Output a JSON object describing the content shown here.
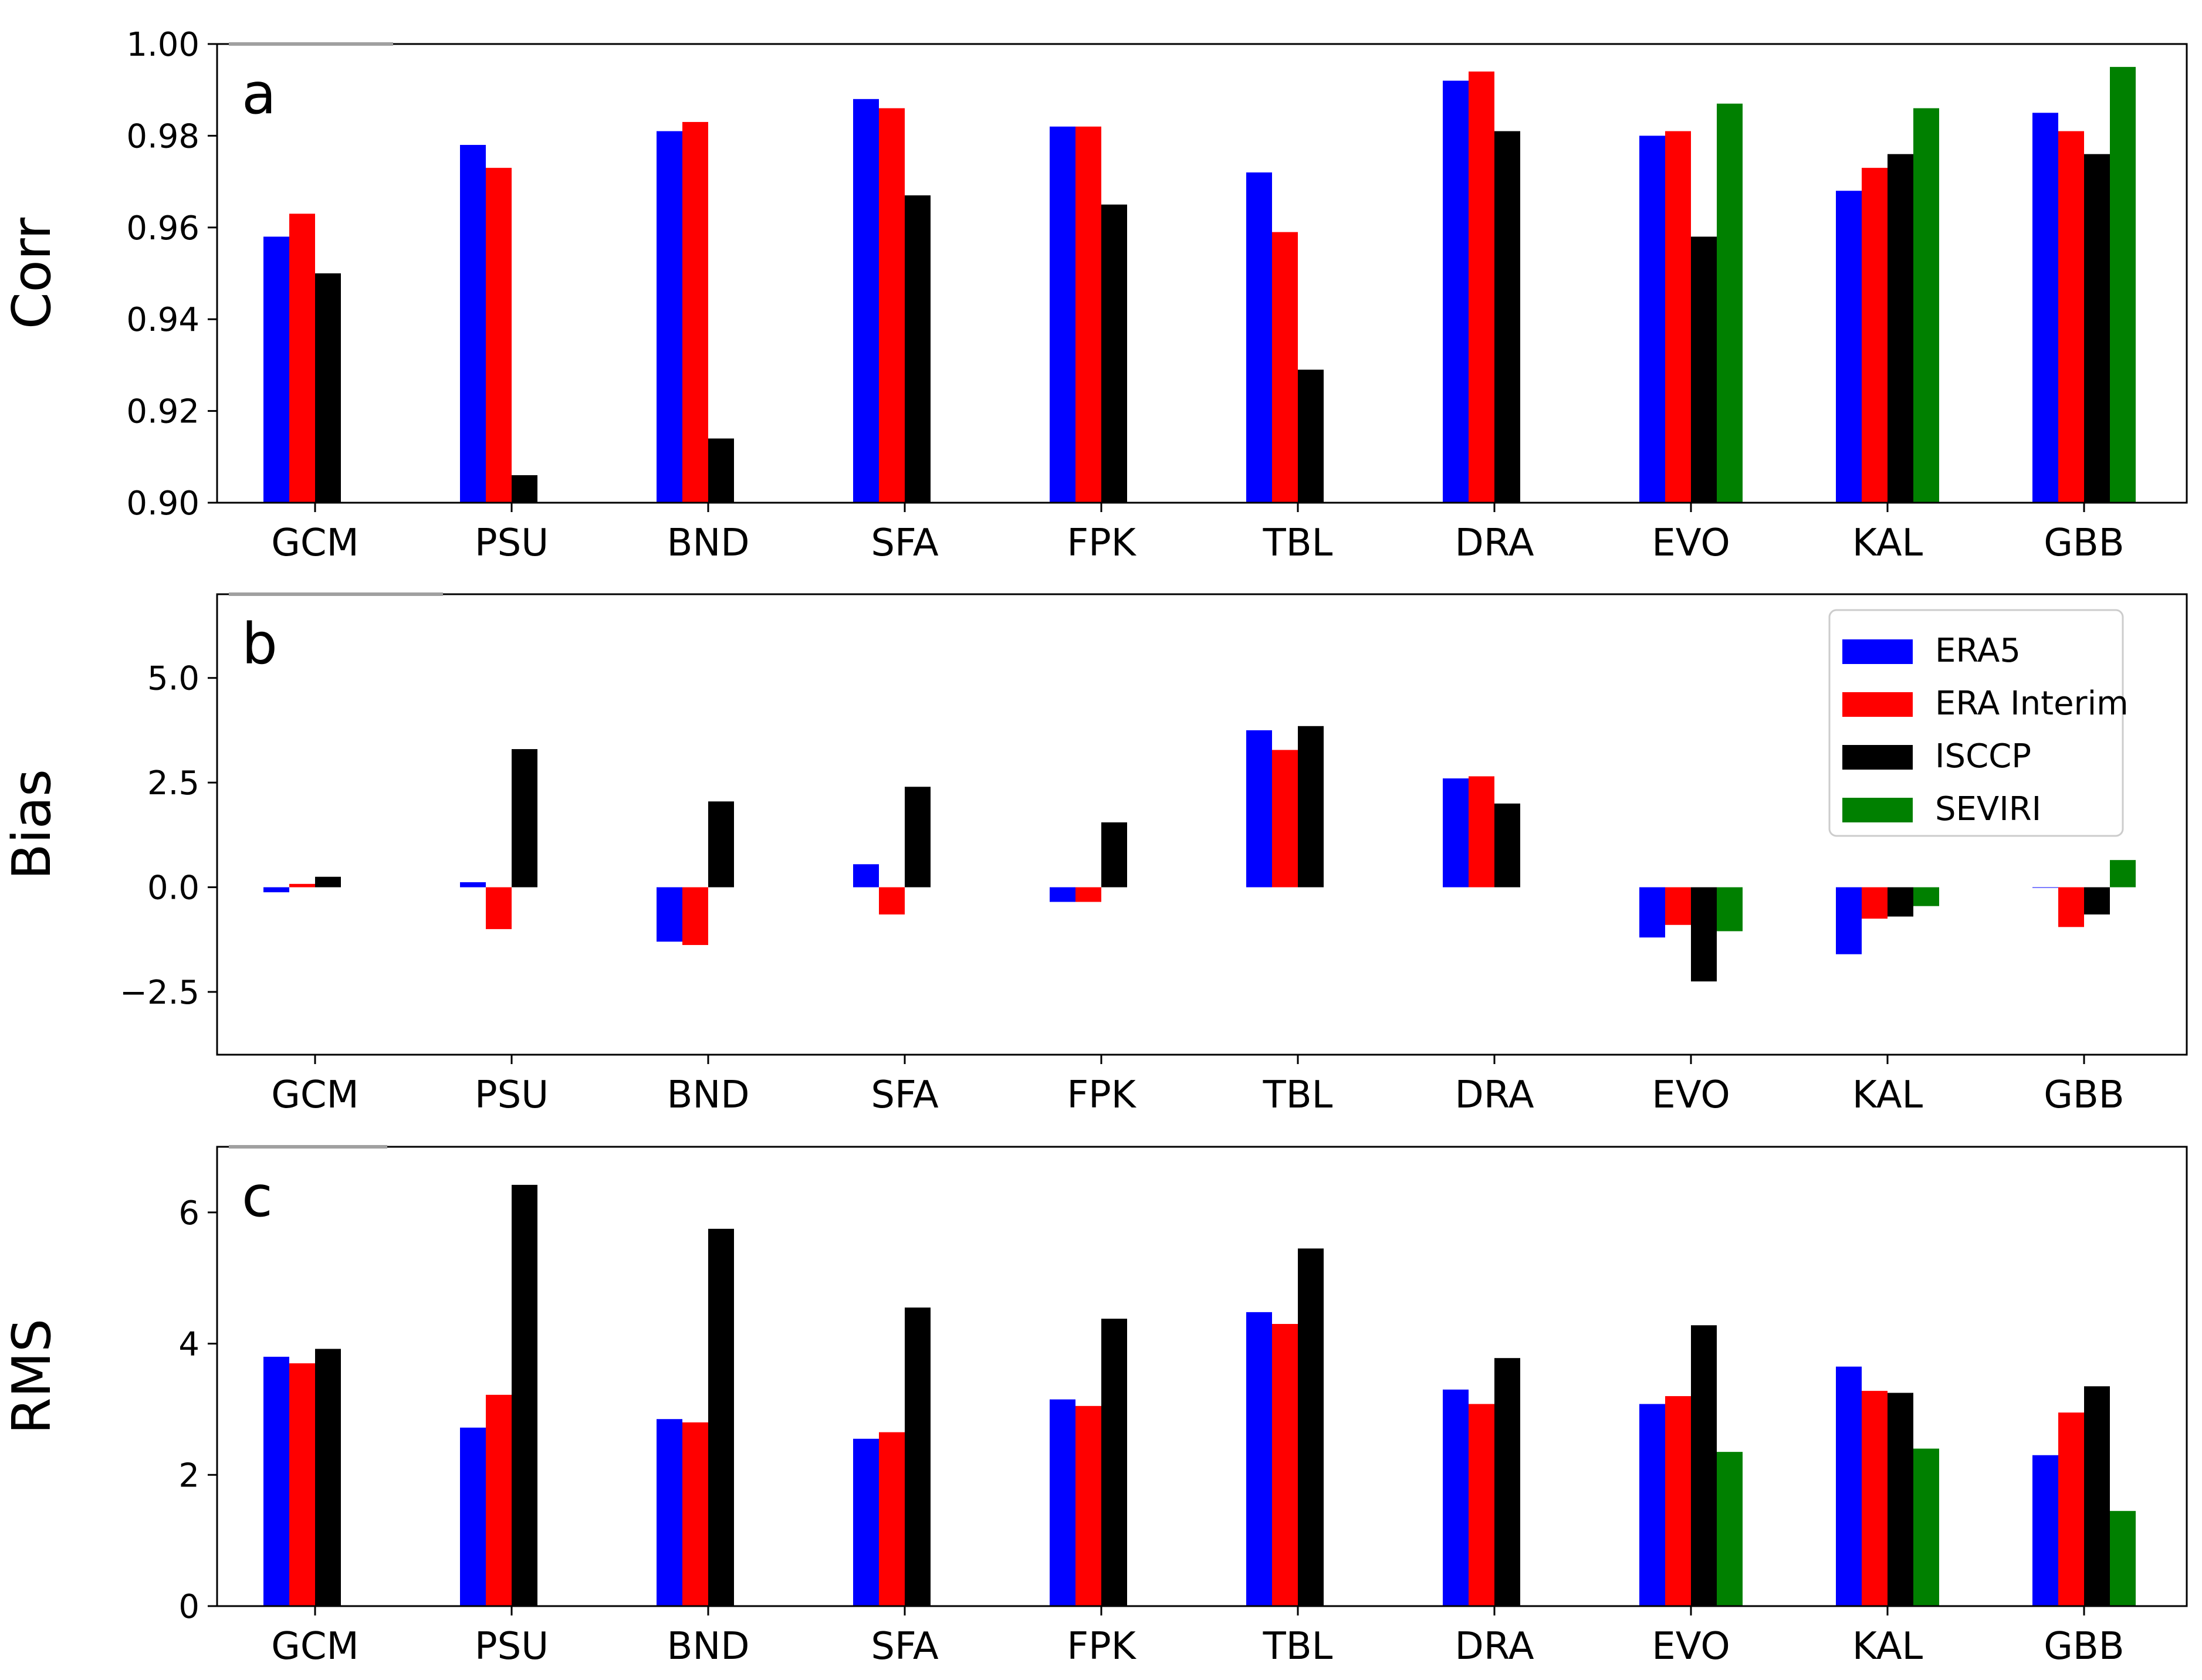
{
  "series_colors": {
    "ERA5": "#0000ff",
    "ERA Interim": "#ff0000",
    "ISCCP": "#000000",
    "SEVIRI": "#008000"
  },
  "legend": {
    "items": [
      "ERA5",
      "ERA Interim",
      "ISCCP",
      "SEVIRI"
    ]
  },
  "chart_data": [
    {
      "type": "bar",
      "panel": "a",
      "ylabel": "Corr",
      "ylim": [
        0.9,
        1.0
      ],
      "yticks": [
        0.9,
        0.92,
        0.94,
        0.96,
        0.98,
        1.0
      ],
      "ytick_labels": [
        "0.90",
        "0.92",
        "0.94",
        "0.96",
        "0.98",
        "1.00"
      ],
      "categories": [
        "GCM",
        "PSU",
        "BND",
        "SFA",
        "FPK",
        "TBL",
        "DRA",
        "EVO",
        "KAL",
        "GBB"
      ],
      "series": [
        {
          "name": "ERA5",
          "values": [
            0.958,
            0.978,
            0.981,
            0.988,
            0.982,
            0.972,
            0.992,
            0.98,
            0.968,
            0.985
          ]
        },
        {
          "name": "ERA Interim",
          "values": [
            0.963,
            0.973,
            0.983,
            0.986,
            0.982,
            0.959,
            0.994,
            0.981,
            0.973,
            0.981
          ]
        },
        {
          "name": "ISCCP",
          "values": [
            0.95,
            0.906,
            0.914,
            0.967,
            0.965,
            0.929,
            0.981,
            0.958,
            0.976,
            0.976
          ]
        },
        {
          "name": "SEVIRI",
          "values": [
            null,
            null,
            null,
            null,
            null,
            null,
            null,
            0.987,
            0.986,
            0.995
          ]
        }
      ]
    },
    {
      "type": "bar",
      "panel": "b",
      "ylabel": "Bias",
      "ylim": [
        -4.0,
        7.0
      ],
      "yticks": [
        -2.5,
        0.0,
        2.5,
        5.0
      ],
      "ytick_labels": [
        "−2.5",
        "0.0",
        "2.5",
        "5.0"
      ],
      "categories": [
        "GCM",
        "PSU",
        "BND",
        "SFA",
        "FPK",
        "TBL",
        "DRA",
        "EVO",
        "KAL",
        "GBB"
      ],
      "series": [
        {
          "name": "ERA5",
          "values": [
            -0.12,
            0.12,
            -1.3,
            0.55,
            -0.35,
            3.75,
            2.6,
            -1.2,
            -1.6,
            0.0
          ]
        },
        {
          "name": "ERA Interim",
          "values": [
            0.08,
            -1.0,
            -1.38,
            -0.65,
            -0.35,
            3.28,
            2.65,
            -0.9,
            -0.75,
            -0.95
          ]
        },
        {
          "name": "ISCCP",
          "values": [
            0.25,
            3.3,
            2.05,
            2.4,
            1.55,
            3.85,
            2.0,
            -2.25,
            -0.7,
            -0.65
          ]
        },
        {
          "name": "SEVIRI",
          "values": [
            null,
            null,
            null,
            null,
            null,
            null,
            null,
            -1.05,
            -0.45,
            0.65
          ]
        }
      ]
    },
    {
      "type": "bar",
      "panel": "c",
      "ylabel": "RMS",
      "ylim": [
        0,
        7
      ],
      "yticks": [
        0,
        2,
        4,
        6
      ],
      "ytick_labels": [
        "0",
        "2",
        "4",
        "6"
      ],
      "categories": [
        "GCM",
        "PSU",
        "BND",
        "SFA",
        "FPK",
        "TBL",
        "DRA",
        "EVO",
        "KAL",
        "GBB"
      ],
      "series": [
        {
          "name": "ERA5",
          "values": [
            3.8,
            2.72,
            2.85,
            2.55,
            3.15,
            4.48,
            3.3,
            3.08,
            3.65,
            2.3
          ]
        },
        {
          "name": "ERA Interim",
          "values": [
            3.7,
            3.22,
            2.8,
            2.65,
            3.05,
            4.3,
            3.08,
            3.2,
            3.28,
            2.95
          ]
        },
        {
          "name": "ISCCP",
          "values": [
            3.92,
            6.42,
            5.75,
            4.55,
            4.38,
            5.45,
            3.78,
            4.28,
            3.25,
            3.35
          ]
        },
        {
          "name": "SEVIRI",
          "values": [
            null,
            null,
            null,
            null,
            null,
            null,
            null,
            2.35,
            2.4,
            1.45
          ]
        }
      ]
    }
  ]
}
